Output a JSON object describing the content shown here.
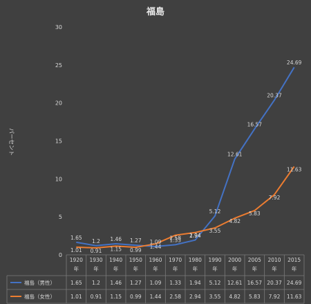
{
  "chart_data": {
    "type": "line",
    "title": "福島",
    "ylabel": "パーセント",
    "ylim": [
      0,
      30
    ],
    "yticks": [
      "0",
      "5",
      "10",
      "15",
      "20",
      "25",
      "30"
    ],
    "categories": [
      [
        "1920",
        "年"
      ],
      [
        "1930",
        "年"
      ],
      [
        "1940",
        "年"
      ],
      [
        "1950",
        "年"
      ],
      [
        "1960",
        "年"
      ],
      [
        "1970",
        "年"
      ],
      [
        "1980",
        "年"
      ],
      [
        "1990",
        "年"
      ],
      [
        "2000",
        "年"
      ],
      [
        "2005",
        "年"
      ],
      [
        "2010",
        "年"
      ],
      [
        "2015",
        "年"
      ]
    ],
    "series": [
      {
        "name": "福島（男性）",
        "color": "#4472c4",
        "values": [
          1.65,
          1.2,
          1.46,
          1.27,
          1.09,
          1.33,
          1.94,
          5.12,
          12.61,
          16.57,
          20.37,
          24.69
        ],
        "labels": [
          "1.65",
          "1.2",
          "1.46",
          "1.27",
          "1.09",
          "1.33",
          "1.94",
          "5.12",
          "12.61",
          "16.57",
          "20.37",
          "24.69"
        ]
      },
      {
        "name": "福島（女性）",
        "color": "#ed7d31",
        "values": [
          1.01,
          0.91,
          1.15,
          0.99,
          1.44,
          2.58,
          2.94,
          3.55,
          4.82,
          5.83,
          7.92,
          11.63
        ],
        "labels": [
          "1.01",
          "0.91",
          "1.15",
          "0.99",
          "1.44",
          "2.58",
          "2.94",
          "3.55",
          "4.82",
          "5.83",
          "7.92",
          "11.63"
        ]
      }
    ],
    "grid": false,
    "legend": "table"
  }
}
